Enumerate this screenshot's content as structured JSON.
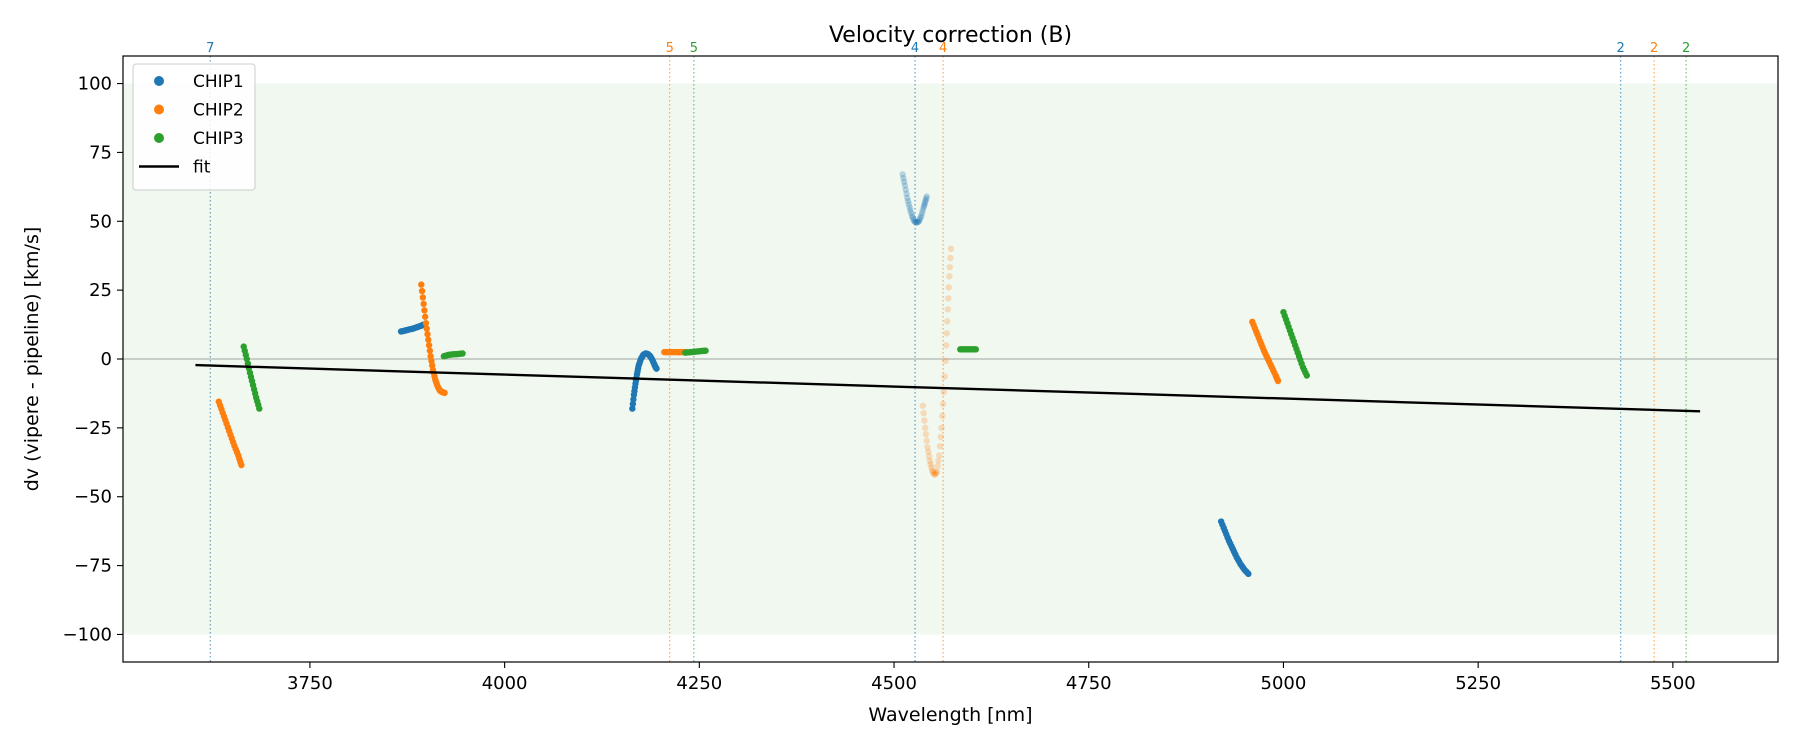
{
  "chart_data": {
    "type": "scatter",
    "title": "Velocity correction (B)",
    "xlabel": "Wavelength [nm]",
    "ylabel": "dv (vipere - pipeline) [km/s]",
    "xlim": [
      3510,
      5635
    ],
    "ylim": [
      -110,
      110
    ],
    "xticks": [
      3750,
      4000,
      4250,
      4500,
      4750,
      5000,
      5250,
      5500
    ],
    "xtick_labels": [
      "3750",
      "4000",
      "4250",
      "4500",
      "4750",
      "5000",
      "5250",
      "5500"
    ],
    "yticks": [
      100,
      75,
      50,
      25,
      0,
      -25,
      -50,
      -75,
      -100
    ],
    "ytick_labels": [
      "100",
      "75",
      "50",
      "25",
      "0",
      "−25",
      "−50",
      "−75",
      "−100"
    ],
    "grid": false,
    "legend_position": "top-left",
    "band": {
      "y0": -100,
      "y1": 100,
      "color": "#2ca02c"
    },
    "zero_line": 0,
    "colors": {
      "CHIP1": "#1f77b4",
      "CHIP2": "#ff7f0e",
      "CHIP3": "#2ca02c",
      "fit": "#000000"
    },
    "legend": [
      {
        "label": "CHIP1",
        "kind": "marker",
        "color": "#1f77b4"
      },
      {
        "label": "CHIP2",
        "kind": "marker",
        "color": "#ff7f0e"
      },
      {
        "label": "CHIP3",
        "kind": "marker",
        "color": "#2ca02c"
      },
      {
        "label": "fit",
        "kind": "line",
        "color": "#000000"
      }
    ],
    "order_markers": [
      {
        "x": 3622,
        "label": "7",
        "color": "#1f77b4"
      },
      {
        "x": 4212,
        "label": "5",
        "color": "#ff7f0e"
      },
      {
        "x": 4243,
        "label": "5",
        "color": "#2ca02c"
      },
      {
        "x": 4527,
        "label": "4",
        "color": "#1f77b4"
      },
      {
        "x": 4563,
        "label": "4",
        "color": "#ff7f0e"
      },
      {
        "x": 5433,
        "label": "2",
        "color": "#1f77b4"
      },
      {
        "x": 5476,
        "label": "2",
        "color": "#ff7f0e"
      },
      {
        "x": 5517,
        "label": "2",
        "color": "#2ca02c"
      }
    ],
    "fit": {
      "x": [
        3603,
        5535
      ],
      "y": [
        -2.2,
        -19
      ]
    },
    "series": [
      {
        "name": "CHIP1",
        "color": "#1f77b4",
        "opacity": 1,
        "x": [
          3867,
          3872,
          3877,
          3882,
          3887,
          3892,
          3896
        ],
        "y": [
          10,
          10.3,
          10.7,
          11,
          11.5,
          12,
          12.5
        ]
      },
      {
        "name": "CHIP1",
        "color": "#1f77b4",
        "opacity": 1,
        "x": [
          4164,
          4166,
          4168,
          4170,
          4172,
          4175,
          4178,
          4181,
          4184,
          4187,
          4190,
          4193,
          4195
        ],
        "y": [
          -18,
          -13,
          -9,
          -5.5,
          -2.5,
          0,
          1.5,
          2,
          1.8,
          1,
          -0.5,
          -2.5,
          -3.5
        ]
      },
      {
        "name": "CHIP1",
        "color": "#1f77b4",
        "opacity": 0.28,
        "x": [
          4511,
          4514,
          4517,
          4520,
          4523,
          4526,
          4529,
          4532,
          4535,
          4538,
          4540,
          4542
        ],
        "y": [
          67,
          63,
          58.5,
          55,
          52,
          50,
          49.5,
          50,
          52,
          55,
          57,
          59
        ]
      },
      {
        "name": "CHIP1",
        "color": "#1f77b4",
        "opacity": 1,
        "x": [
          4920,
          4925,
          4930,
          4935,
          4940,
          4945,
          4950,
          4955
        ],
        "y": [
          -59,
          -62.5,
          -66,
          -69,
          -72,
          -74.5,
          -76.5,
          -78
        ]
      },
      {
        "name": "CHIP2",
        "color": "#ff7f0e",
        "opacity": 1,
        "x": [
          3633,
          3638,
          3643,
          3648,
          3653,
          3658,
          3662
        ],
        "y": [
          -15.5,
          -19.5,
          -23.5,
          -27.5,
          -31.5,
          -35,
          -38.5
        ]
      },
      {
        "name": "CHIP2",
        "color": "#ff7f0e",
        "opacity": 1,
        "x": [
          3893,
          3896,
          3899,
          3902,
          3905,
          3908,
          3911,
          3914,
          3917,
          3920,
          3923
        ],
        "y": [
          27,
          20,
          13,
          7,
          1,
          -4,
          -7.5,
          -10,
          -11.5,
          -12,
          -12.3
        ]
      },
      {
        "name": "CHIP2",
        "color": "#ff7f0e",
        "opacity": 1,
        "x": [
          4205,
          4212,
          4219,
          4226,
          4233
        ],
        "y": [
          2.5,
          2.5,
          2.5,
          2.5,
          2.5
        ]
      },
      {
        "name": "CHIP2",
        "color": "#ff7f0e",
        "opacity": 0.25,
        "x": [
          4537,
          4540,
          4543,
          4546,
          4549,
          4552,
          4555,
          4558,
          4561,
          4564,
          4567,
          4569,
          4571,
          4573
        ],
        "y": [
          -17,
          -25,
          -32,
          -37,
          -40.5,
          -42,
          -41,
          -35,
          -25,
          -12,
          5,
          18,
          30,
          40
        ]
      },
      {
        "name": "CHIP2",
        "color": "#ff7f0e",
        "opacity": 1,
        "x": [
          4960,
          4965,
          4970,
          4975,
          4980,
          4985,
          4990,
          4993
        ],
        "y": [
          13.5,
          10,
          6.5,
          3,
          0,
          -3,
          -6,
          -8
        ]
      },
      {
        "name": "CHIP3",
        "color": "#2ca02c",
        "opacity": 1,
        "x": [
          3665,
          3669,
          3673,
          3677,
          3681,
          3685
        ],
        "y": [
          4.5,
          0,
          -5,
          -9.5,
          -14,
          -18
        ]
      },
      {
        "name": "CHIP3",
        "color": "#2ca02c",
        "opacity": 1,
        "x": [
          3922,
          3928,
          3934,
          3940,
          3946
        ],
        "y": [
          1,
          1.5,
          1.7,
          1.8,
          2
        ]
      },
      {
        "name": "CHIP3",
        "color": "#2ca02c",
        "opacity": 1,
        "x": [
          4232,
          4239,
          4246,
          4253,
          4258
        ],
        "y": [
          2.3,
          2.5,
          2.7,
          2.9,
          3
        ]
      },
      {
        "name": "CHIP3",
        "color": "#2ca02c",
        "opacity": 1,
        "x": [
          4585,
          4590,
          4595,
          4600,
          4605
        ],
        "y": [
          3.5,
          3.5,
          3.5,
          3.5,
          3.5
        ]
      },
      {
        "name": "CHIP3",
        "color": "#2ca02c",
        "opacity": 1,
        "x": [
          5000,
          5005,
          5010,
          5015,
          5020,
          5025,
          5030
        ],
        "y": [
          17,
          13,
          9,
          5,
          1,
          -3,
          -6
        ]
      }
    ]
  }
}
